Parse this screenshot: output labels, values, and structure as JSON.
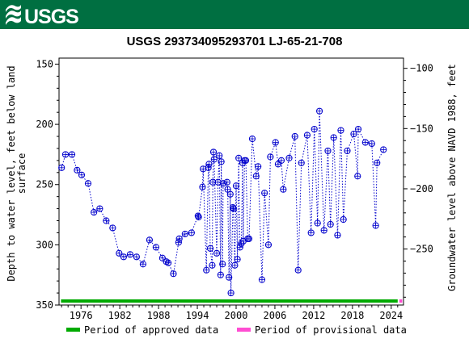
{
  "header": {
    "logo_text": "USGS",
    "background_color": "#006f41",
    "logo_icon": "usgs-wave-icon"
  },
  "chart_data": {
    "type": "scatter",
    "title": "USGS 293734095293701 LJ-65-21-708",
    "ylabel_left_lines": [
      "Depth to water level, feet below land",
      "surface"
    ],
    "ylabel_right": "Groundwater level above NAVD 1988, feet",
    "left_axis": {
      "ylim": [
        350,
        145
      ],
      "ticks": [
        150,
        200,
        250,
        300,
        350
      ],
      "inverted": true
    },
    "right_axis": {
      "ticks": [
        -100,
        -150,
        -200,
        -250
      ]
    },
    "x_axis": {
      "xlim": [
        1972.6,
        2025.9
      ],
      "ticks": [
        1976,
        1982,
        1988,
        1994,
        2000,
        2006,
        2012,
        2018,
        2024
      ]
    },
    "grid": false,
    "marker_color": "#0000cc",
    "line_style": "dotted",
    "series": [
      {
        "points": [
          [
            1973.0,
            236
          ],
          [
            1973.6,
            225
          ],
          [
            1974.6,
            225
          ],
          [
            1975.4,
            238
          ],
          [
            1976.1,
            242
          ],
          [
            1977.1,
            249
          ],
          [
            1978.0,
            273
          ],
          [
            1978.9,
            270
          ],
          [
            1979.9,
            280
          ],
          [
            1980.9,
            286
          ],
          [
            1981.9,
            307
          ],
          [
            1982.6,
            310
          ],
          [
            1983.6,
            308
          ],
          [
            1984.6,
            310
          ],
          [
            1985.6,
            316
          ],
          [
            1986.6,
            296
          ],
          [
            1987.6,
            302
          ],
          [
            1988.6,
            311
          ],
          [
            1989.2,
            314
          ],
          [
            1989.5,
            315
          ],
          [
            1990.3,
            324
          ],
          [
            1991.1,
            298
          ],
          [
            1991.2,
            295
          ],
          [
            1992.1,
            291
          ],
          [
            1993.1,
            290
          ],
          [
            1994.1,
            276
          ],
          [
            1994.2,
            277
          ],
          [
            1994.8,
            252
          ],
          [
            1994.9,
            237
          ],
          [
            1995.4,
            321
          ],
          [
            1995.7,
            236
          ],
          [
            1995.8,
            233
          ],
          [
            1996.0,
            303
          ],
          [
            1996.3,
            317
          ],
          [
            1996.4,
            248
          ],
          [
            1996.5,
            223
          ],
          [
            1996.6,
            229
          ],
          [
            1997.0,
            307
          ],
          [
            1997.2,
            248
          ],
          [
            1997.4,
            226
          ],
          [
            1997.6,
            325
          ],
          [
            1997.7,
            231
          ],
          [
            1997.9,
            316
          ],
          [
            1998.0,
            249
          ],
          [
            1998.6,
            248
          ],
          [
            1998.7,
            254
          ],
          [
            1998.9,
            327
          ],
          [
            1999.1,
            258
          ],
          [
            1999.2,
            340
          ],
          [
            1999.5,
            269
          ],
          [
            1999.6,
            270
          ],
          [
            1999.8,
            317
          ],
          [
            2000.0,
            251
          ],
          [
            2000.2,
            312
          ],
          [
            2000.4,
            228
          ],
          [
            2000.6,
            302
          ],
          [
            2000.8,
            299
          ],
          [
            2001.0,
            232
          ],
          [
            2001.1,
            297
          ],
          [
            2001.3,
            230
          ],
          [
            2001.5,
            230
          ],
          [
            2001.8,
            295
          ],
          [
            2002.0,
            295
          ],
          [
            2002.5,
            212
          ],
          [
            2003.1,
            243
          ],
          [
            2003.4,
            235
          ],
          [
            2004.0,
            329
          ],
          [
            2004.4,
            257
          ],
          [
            2005.0,
            300
          ],
          [
            2005.3,
            227
          ],
          [
            2006.1,
            215
          ],
          [
            2006.5,
            233
          ],
          [
            2007.0,
            230
          ],
          [
            2007.3,
            254
          ],
          [
            2008.2,
            228
          ],
          [
            2009.1,
            210
          ],
          [
            2009.6,
            321
          ],
          [
            2010.1,
            232
          ],
          [
            2011.0,
            209
          ],
          [
            2011.6,
            290
          ],
          [
            2012.1,
            204
          ],
          [
            2012.6,
            282
          ],
          [
            2012.9,
            189
          ],
          [
            2013.6,
            288
          ],
          [
            2014.2,
            222
          ],
          [
            2014.6,
            283
          ],
          [
            2015.1,
            211
          ],
          [
            2015.7,
            292
          ],
          [
            2016.2,
            205
          ],
          [
            2016.6,
            279
          ],
          [
            2017.2,
            222
          ],
          [
            2018.2,
            208
          ],
          [
            2018.8,
            243
          ],
          [
            2018.9,
            204
          ],
          [
            2020.0,
            215
          ],
          [
            2021.0,
            216
          ],
          [
            2021.6,
            284
          ],
          [
            2021.8,
            232
          ],
          [
            2022.8,
            221
          ]
        ]
      }
    ],
    "approved_bar": {
      "from": 1972.9,
      "to": 2025.0,
      "color": "#00aa00"
    },
    "provisional_bar": {
      "from": 2025.0,
      "to": 2025.7,
      "color": "#ff4dd2"
    },
    "legend": {
      "placement": "bottom",
      "items": [
        {
          "label": "Period of approved data",
          "color": "#00aa00"
        },
        {
          "label": "Period of provisional data",
          "color": "#ff4dd2"
        }
      ]
    }
  }
}
